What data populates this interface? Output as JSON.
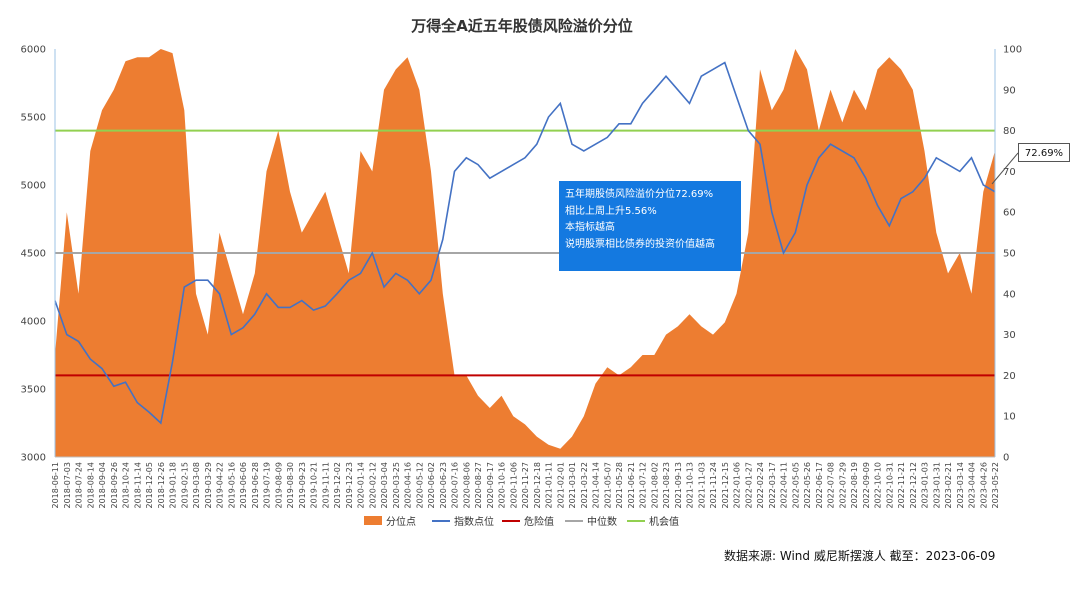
{
  "chart_data": {
    "type": "area",
    "title": "万得全A近五年股债风险溢价分位",
    "x_dates": [
      "2018-06-11",
      "2018-07-03",
      "2018-07-24",
      "2018-08-14",
      "2018-09-04",
      "2018-09-26",
      "2018-10-24",
      "2018-11-14",
      "2018-12-05",
      "2018-12-26",
      "2019-01-18",
      "2019-02-15",
      "2019-03-08",
      "2019-03-29",
      "2019-04-22",
      "2019-05-16",
      "2019-06-06",
      "2019-06-28",
      "2019-07-19",
      "2019-08-09",
      "2019-08-30",
      "2019-09-23",
      "2019-10-21",
      "2019-11-11",
      "2019-12-02",
      "2019-12-23",
      "2020-01-14",
      "2020-02-12",
      "2020-03-04",
      "2020-03-25",
      "2020-04-16",
      "2020-05-12",
      "2020-06-02",
      "2020-06-23",
      "2020-07-16",
      "2020-08-06",
      "2020-08-27",
      "2020-09-17",
      "2020-10-16",
      "2020-11-06",
      "2020-11-27",
      "2020-12-18",
      "2021-01-11",
      "2021-02-01",
      "2021-03-01",
      "2021-03-22",
      "2021-04-14",
      "2021-05-07",
      "2021-05-28",
      "2021-06-21",
      "2021-07-12",
      "2021-08-02",
      "2021-08-23",
      "2021-09-13",
      "2021-10-13",
      "2021-11-03",
      "2021-11-24",
      "2021-12-15",
      "2022-01-06",
      "2022-01-27",
      "2022-02-24",
      "2022-03-17",
      "2022-04-11",
      "2022-05-05",
      "2022-05-26",
      "2022-06-17",
      "2022-07-08",
      "2022-07-29",
      "2022-08-19",
      "2022-09-09",
      "2022-10-10",
      "2022-10-31",
      "2022-11-21",
      "2022-12-12",
      "2023-01-03",
      "2023-01-31",
      "2023-02-21",
      "2023-03-14",
      "2023-04-04",
      "2023-04-26",
      "2023-05-22"
    ],
    "left_axis": {
      "ylim": [
        3000,
        6000
      ],
      "ticks": [
        3000,
        3500,
        4000,
        4500,
        5000,
        5500,
        6000
      ]
    },
    "right_axis": {
      "ylim": [
        0,
        100
      ],
      "ticks": [
        0,
        10,
        20,
        30,
        40,
        50,
        60,
        70,
        80,
        90,
        100
      ]
    },
    "series": [
      {
        "name": "分位点",
        "kind": "area",
        "axis": "right",
        "color": "#ed7d31",
        "values": [
          25,
          60,
          40,
          75,
          85,
          90,
          97,
          98,
          98,
          100,
          99,
          85,
          40,
          30,
          55,
          45,
          35,
          45,
          70,
          80,
          65,
          55,
          60,
          65,
          55,
          45,
          75,
          70,
          90,
          95,
          98,
          90,
          70,
          40,
          20,
          20,
          15,
          12,
          15,
          10,
          8,
          5,
          3,
          2,
          5,
          10,
          18,
          22,
          20,
          22,
          25,
          25,
          30,
          32,
          35,
          32,
          30,
          33,
          40,
          55,
          95,
          85,
          90,
          100,
          95,
          80,
          90,
          82,
          90,
          85,
          95,
          98,
          95,
          90,
          75,
          55,
          45,
          50,
          40,
          65,
          75
        ]
      },
      {
        "name": "指数点位",
        "kind": "line",
        "axis": "left",
        "color": "#4472c4",
        "values": [
          4150,
          3900,
          3850,
          3720,
          3650,
          3520,
          3550,
          3400,
          3330,
          3250,
          3700,
          4250,
          4300,
          4300,
          4200,
          3900,
          3950,
          4050,
          4200,
          4100,
          4100,
          4150,
          4080,
          4110,
          4200,
          4300,
          4350,
          4500,
          4250,
          4350,
          4300,
          4200,
          4300,
          4600,
          5100,
          5200,
          5150,
          5050,
          5100,
          5150,
          5200,
          5300,
          5500,
          5600,
          5300,
          5250,
          5300,
          5350,
          5450,
          5450,
          5600,
          5700,
          5800,
          5700,
          5600,
          5800,
          5850,
          5900,
          5650,
          5400,
          5300,
          4800,
          4500,
          4650,
          5000,
          5200,
          5300,
          5250,
          5200,
          5050,
          4850,
          4700,
          4900,
          4950,
          5050,
          5200,
          5150,
          5100,
          5200,
          5000,
          4950
        ]
      },
      {
        "name": "危险值",
        "kind": "hline",
        "axis": "right",
        "value": 20,
        "color": "#c00000"
      },
      {
        "name": "中位数",
        "kind": "hline",
        "axis": "right",
        "value": 50,
        "color": "#a6a6a6"
      },
      {
        "name": "机会值",
        "kind": "hline",
        "axis": "right",
        "value": 80,
        "color": "#92d050"
      }
    ],
    "legend_position": "bottom",
    "grid": false,
    "callout_value": "72.69%",
    "annotation_lines": [
      "五年期股债风险溢价分位72.69%",
      "相比上周上升5.56%",
      "本指标越高",
      "说明股票相比债券的投资价值越高"
    ],
    "source_text": "数据来源: Wind  威尼斯摆渡人    截至：2023-06-09"
  }
}
